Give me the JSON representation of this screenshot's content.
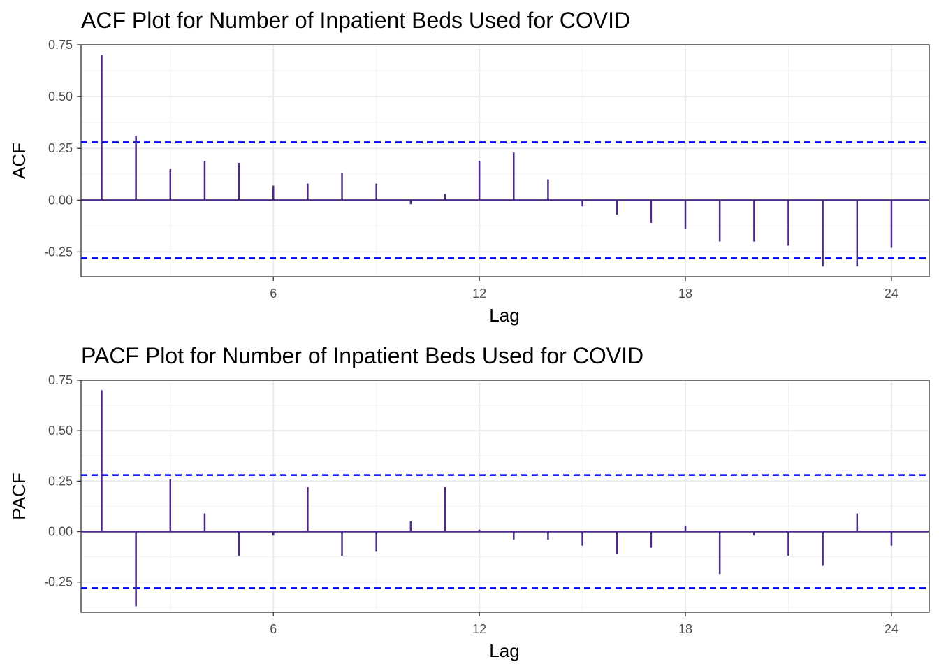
{
  "chart_data": [
    {
      "type": "bar",
      "title": "ACF Plot for Number of Inpatient Beds Used for COVID",
      "xlabel": "Lag",
      "ylabel": "ACF",
      "xlim": [
        0.4,
        25.1
      ],
      "ylim": [
        -0.37,
        0.75
      ],
      "x_ticks": [
        6,
        12,
        18,
        24
      ],
      "y_ticks": [
        -0.25,
        0.0,
        0.25,
        0.5,
        0.75
      ],
      "y_tick_labels": [
        "-0.25",
        "0.00",
        "0.25",
        "0.50",
        "0.75"
      ],
      "grid": true,
      "confidence_bounds": [
        0.28,
        -0.28
      ],
      "lags": [
        1,
        2,
        3,
        4,
        5,
        6,
        7,
        8,
        9,
        10,
        11,
        12,
        13,
        14,
        15,
        16,
        17,
        18,
        19,
        20,
        21,
        22,
        23,
        24
      ],
      "values": [
        0.7,
        0.31,
        0.15,
        0.19,
        0.18,
        0.07,
        0.08,
        0.13,
        0.08,
        -0.02,
        0.03,
        0.19,
        0.23,
        0.1,
        -0.03,
        -0.07,
        -0.11,
        -0.14,
        -0.2,
        -0.2,
        -0.22,
        -0.32,
        -0.32,
        -0.23
      ],
      "colors": {
        "bars": "#4b2a8a",
        "bounds": "#0000ff",
        "grid": "#ebebeb",
        "zero": "#4b2a8a"
      }
    },
    {
      "type": "bar",
      "title": "PACF Plot for Number of Inpatient Beds Used for COVID",
      "xlabel": "Lag",
      "ylabel": "PACF",
      "xlim": [
        0.4,
        25.1
      ],
      "ylim": [
        -0.4,
        0.75
      ],
      "x_ticks": [
        6,
        12,
        18,
        24
      ],
      "y_ticks": [
        -0.25,
        0.0,
        0.25,
        0.5,
        0.75
      ],
      "y_tick_labels": [
        "-0.25",
        "0.00",
        "0.25",
        "0.50",
        "0.75"
      ],
      "grid": true,
      "confidence_bounds": [
        0.28,
        -0.28
      ],
      "lags": [
        1,
        2,
        3,
        4,
        5,
        6,
        7,
        8,
        9,
        10,
        11,
        12,
        13,
        14,
        15,
        16,
        17,
        18,
        19,
        20,
        21,
        22,
        23,
        24
      ],
      "values": [
        0.7,
        -0.37,
        0.26,
        0.09,
        -0.12,
        -0.02,
        0.22,
        -0.12,
        -0.1,
        0.05,
        0.22,
        0.01,
        -0.04,
        -0.04,
        -0.07,
        -0.11,
        -0.08,
        0.03,
        -0.21,
        -0.02,
        -0.12,
        -0.17,
        0.09,
        -0.07
      ],
      "colors": {
        "bars": "#4b2a8a",
        "bounds": "#0000ff",
        "grid": "#ebebeb",
        "zero": "#4b2a8a"
      }
    }
  ]
}
